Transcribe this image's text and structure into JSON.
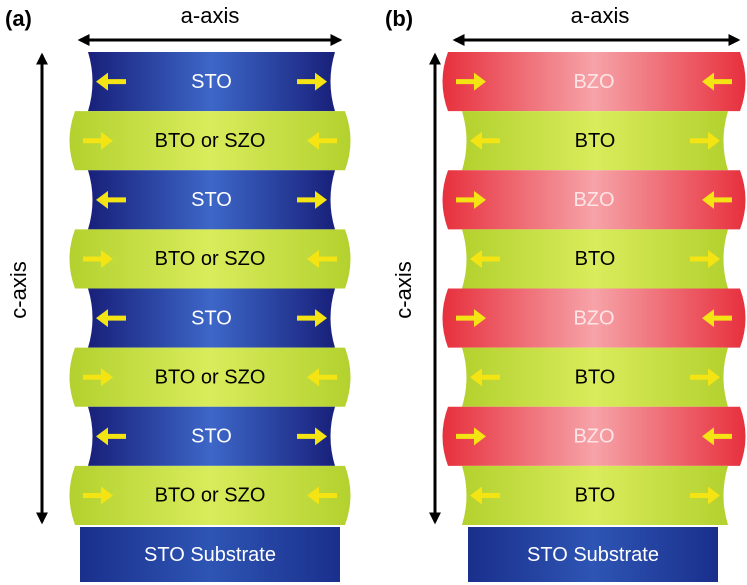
{
  "panels": [
    {
      "label": "(a)",
      "x_axis": "a-axis",
      "y_axis": "c-axis",
      "layers": [
        "STO",
        "BTO or SZO",
        "STO",
        "BTO or SZO",
        "STO",
        "BTO or SZO",
        "STO",
        "BTO or SZO"
      ],
      "substrate": "STO Substrate"
    },
    {
      "label": "(b)",
      "x_axis": "a-axis",
      "y_axis": "c-axis",
      "layers": [
        "BZO",
        "BTO",
        "BZO",
        "BTO",
        "BZO",
        "BTO",
        "BZO",
        "BTO"
      ],
      "substrate": "STO Substrate"
    }
  ]
}
